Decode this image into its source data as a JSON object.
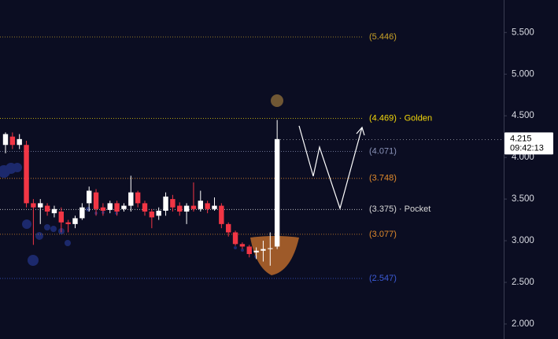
{
  "chart_data": {
    "type": "candlestick",
    "ylim": [
      1.82,
      5.89
    ],
    "yticks": [
      {
        "value": 5.5,
        "label": "5.500"
      },
      {
        "value": 5.0,
        "label": "5.000"
      },
      {
        "value": 4.5,
        "label": "4.500"
      },
      {
        "value": 4.0,
        "label": "4.000"
      },
      {
        "value": 3.5,
        "label": "3.500"
      },
      {
        "value": 3.0,
        "label": "3.000"
      },
      {
        "value": 2.5,
        "label": "2.500"
      },
      {
        "value": 2.0,
        "label": "2.000"
      }
    ],
    "levels": [
      {
        "value": 5.446,
        "label": "(5.446)",
        "color": "#c9a227"
      },
      {
        "value": 4.469,
        "label": "(4.469) · Golden",
        "color": "#f5d90a"
      },
      {
        "value": 4.071,
        "label": "(4.071)",
        "color": "#8a93b8"
      },
      {
        "value": 3.748,
        "label": "(3.748)",
        "color": "#e08a2c"
      },
      {
        "value": 3.375,
        "label": "(3.375) · Pocket",
        "color": "#d8d8d8"
      },
      {
        "value": 3.077,
        "label": "(3.077)",
        "color": "#e08a2c"
      },
      {
        "value": 2.547,
        "label": "(2.547)",
        "color": "#3c5bd6"
      }
    ],
    "last_price": 4.215,
    "countdown": "09:42:13",
    "up_color": "#ffffff",
    "down_color": "#f23645",
    "open": [
      4.15,
      4.25,
      4.15,
      4.15,
      3.45,
      3.4,
      3.42,
      3.33,
      3.35,
      3.22,
      3.2,
      3.27,
      3.45,
      3.58,
      3.4,
      3.37,
      3.45,
      3.38,
      3.42,
      3.58,
      3.45,
      3.35,
      3.3,
      3.36,
      3.5,
      3.42,
      3.35,
      3.42,
      3.38,
      3.45,
      3.38,
      3.42,
      3.2,
      3.1,
      2.96,
      2.93,
      2.86,
      2.88,
      2.9,
      2.93
    ],
    "high": [
      4.3,
      4.3,
      4.28,
      4.2,
      3.5,
      3.5,
      3.45,
      3.42,
      3.4,
      3.25,
      3.3,
      3.45,
      3.65,
      3.62,
      3.45,
      3.48,
      3.48,
      3.45,
      3.78,
      3.6,
      3.48,
      3.38,
      3.4,
      3.58,
      3.55,
      3.46,
      3.45,
      3.7,
      3.6,
      3.48,
      3.52,
      3.45,
      3.22,
      3.12,
      2.98,
      2.95,
      2.92,
      3.0,
      3.1,
      4.45
    ],
    "low": [
      4.05,
      4.1,
      4.1,
      3.4,
      2.95,
      3.2,
      3.3,
      3.28,
      3.1,
      3.1,
      3.15,
      3.25,
      3.35,
      3.3,
      3.3,
      3.33,
      3.3,
      3.35,
      3.35,
      3.4,
      3.3,
      3.15,
      3.25,
      3.3,
      3.35,
      3.3,
      3.2,
      3.35,
      3.35,
      3.33,
      3.36,
      3.15,
      3.05,
      2.94,
      2.9,
      2.8,
      2.78,
      2.75,
      2.7,
      2.9
    ],
    "close": [
      4.28,
      4.15,
      4.22,
      3.45,
      3.4,
      3.45,
      3.35,
      3.38,
      3.22,
      3.2,
      3.27,
      3.4,
      3.6,
      3.38,
      3.36,
      3.45,
      3.35,
      3.42,
      3.58,
      3.45,
      3.35,
      3.28,
      3.36,
      3.53,
      3.4,
      3.35,
      3.42,
      3.38,
      3.48,
      3.38,
      3.42,
      3.2,
      3.1,
      2.96,
      2.93,
      2.84,
      2.88,
      2.9,
      2.91,
      4.22
    ]
  }
}
